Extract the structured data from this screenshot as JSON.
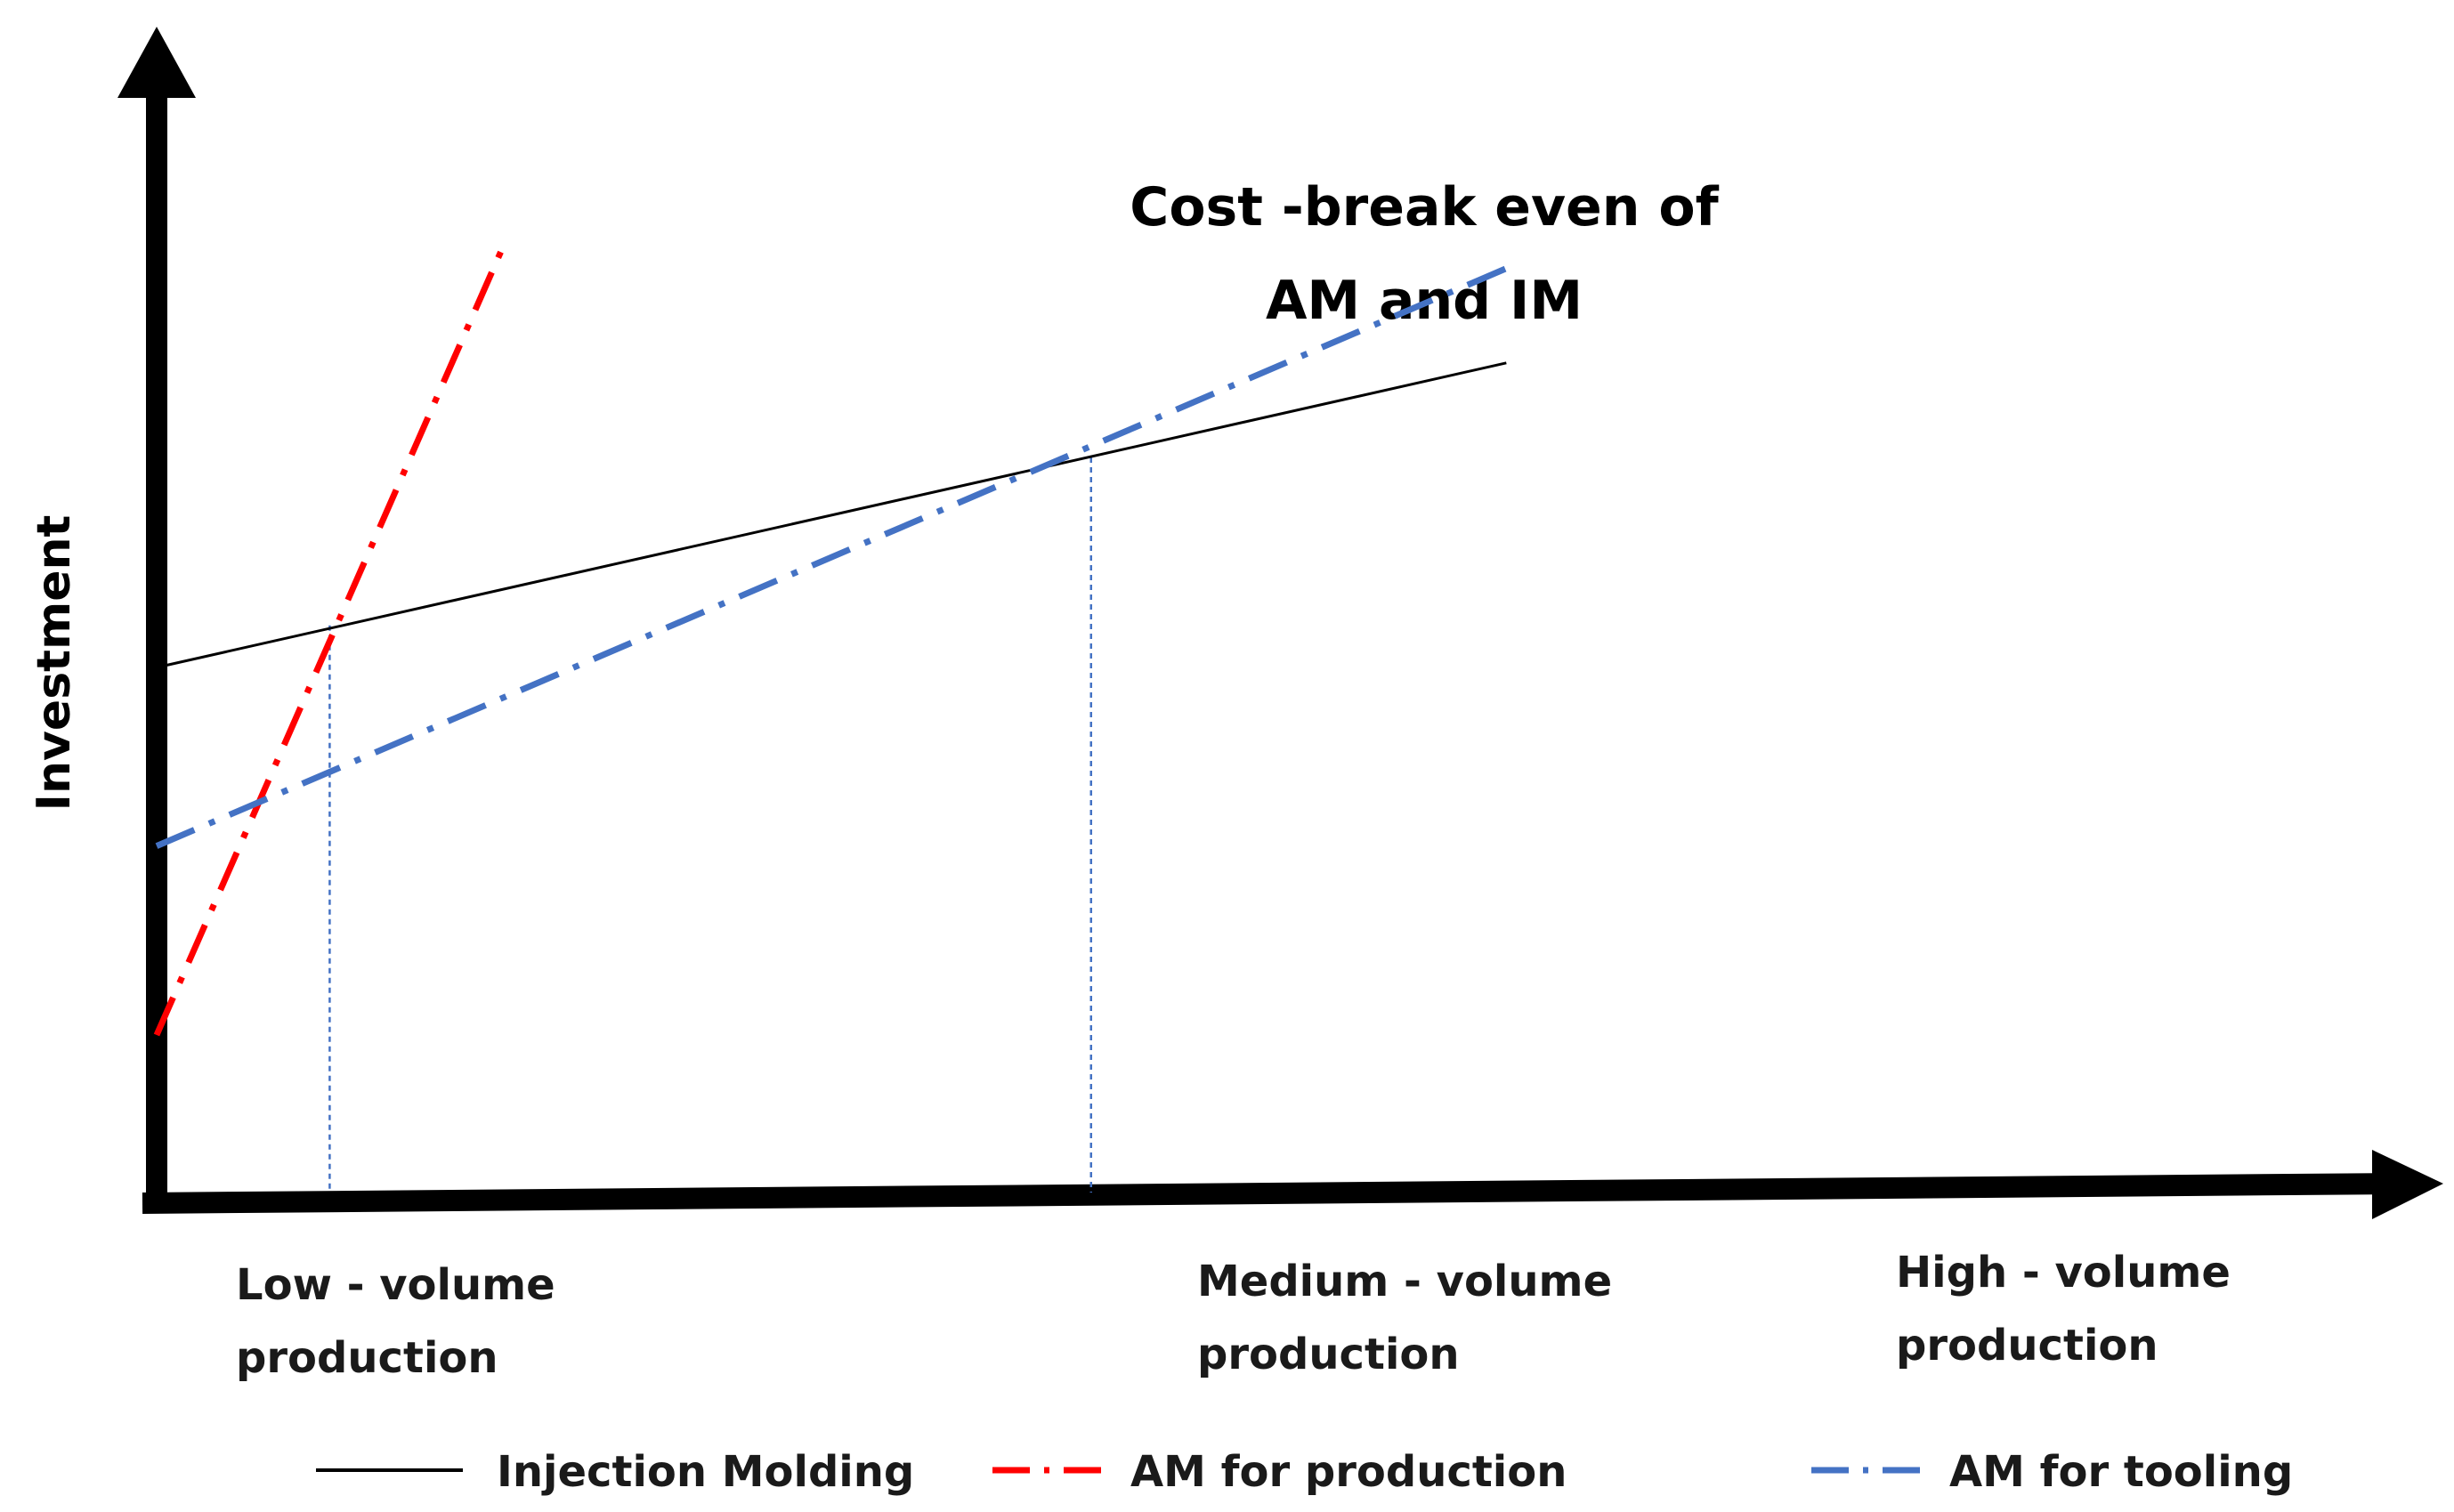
{
  "chart_data": {
    "type": "line",
    "title_lines": [
      "Cost -break even of",
      "AM and IM"
    ],
    "ylabel": "Investment",
    "xlabel": "",
    "xlim": [
      0,
      100
    ],
    "ylim": [
      0,
      100
    ],
    "grid": false,
    "legend_position": "bottom",
    "categories": [
      {
        "lines": [
          "Low - volume",
          "production"
        ],
        "x": 10
      },
      {
        "lines": [
          "Medium - volume",
          "production"
        ],
        "x": 54
      },
      {
        "lines": [
          "High - volume",
          "production"
        ],
        "x": 85
      }
    ],
    "series": [
      {
        "name": "Injection Molding",
        "color": "#000000",
        "style": "solid",
        "x": [
          0,
          78
        ],
        "y": [
          50,
          79
        ]
      },
      {
        "name": "AM for production",
        "color": "#ff0000",
        "style": "dashdot",
        "x": [
          0,
          20
        ],
        "y": [
          15,
          90
        ]
      },
      {
        "name": "AM for tooling",
        "color": "#4472c4",
        "style": "dashdot",
        "x": [
          0,
          78
        ],
        "y": [
          33,
          88
        ]
      }
    ],
    "break_even_markers": [
      {
        "x": 10,
        "y": 54,
        "color": "#4472c4"
      },
      {
        "x": 54,
        "y": 70,
        "color": "#4472c4"
      }
    ]
  }
}
